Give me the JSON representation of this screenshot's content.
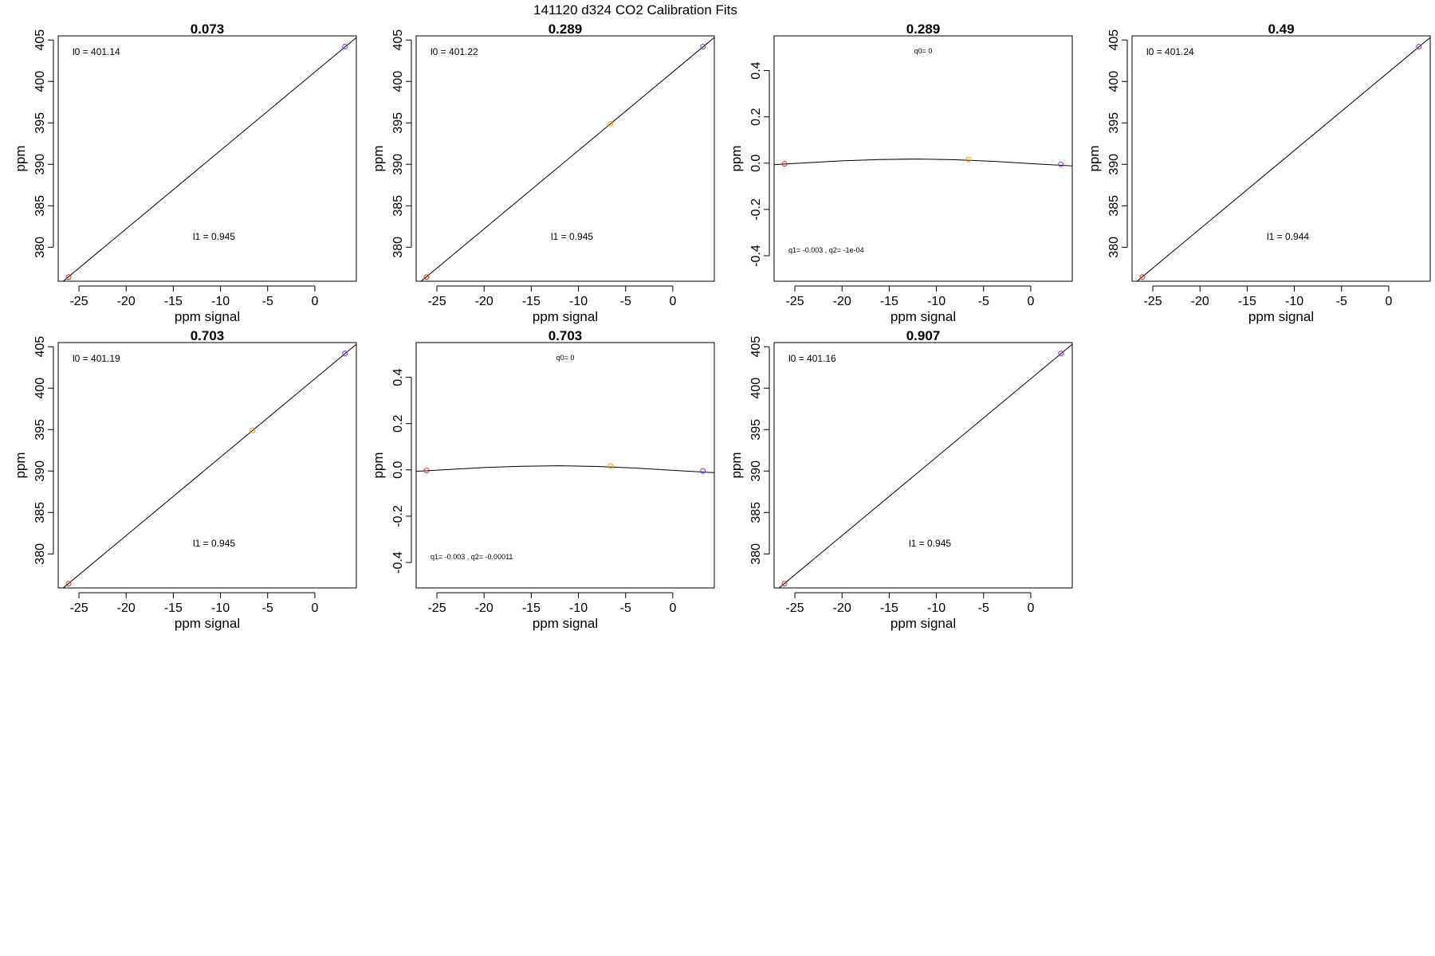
{
  "figure": {
    "title": "141120   d324   CO2 Calibration Fits"
  },
  "chart_data": [
    {
      "type": "scatter",
      "fit": "linear",
      "title": "0.073",
      "xlabel": "ppm signal",
      "ylabel": "ppm",
      "xlim": [
        -27.2,
        4.4
      ],
      "ylim": [
        375.9,
        405.5
      ],
      "xticks": [
        -25,
        -20,
        -15,
        -10,
        -5,
        0
      ],
      "yticks": [
        380,
        385,
        390,
        395,
        400,
        405
      ],
      "points": [
        {
          "x": -26.1,
          "y": 376.4,
          "color": "#d62728"
        },
        {
          "x": 3.2,
          "y": 404.2,
          "color": "#8a2be2"
        }
      ],
      "fit_line": [
        {
          "x": -27.2,
          "y": 375.4
        },
        {
          "x": 4.4,
          "y": 405.3
        }
      ],
      "annotations": [
        "l0 =  401.14",
        "l1 =  0.945"
      ],
      "grid": false,
      "legend": "none"
    },
    {
      "type": "scatter",
      "fit": "linear",
      "title": "0.289",
      "xlabel": "ppm signal",
      "ylabel": "ppm",
      "xlim": [
        -27.2,
        4.4
      ],
      "ylim": [
        375.9,
        405.5
      ],
      "xticks": [
        -25,
        -20,
        -15,
        -10,
        -5,
        0
      ],
      "yticks": [
        380,
        385,
        390,
        395,
        400,
        405
      ],
      "points": [
        {
          "x": -26.1,
          "y": 376.4,
          "color": "#d62728"
        },
        {
          "x": -6.6,
          "y": 394.9,
          "color": "#ff9900"
        },
        {
          "x": 3.2,
          "y": 404.2,
          "color": "#8a2be2"
        }
      ],
      "fit_line": [
        {
          "x": -27.2,
          "y": 375.4
        },
        {
          "x": 4.4,
          "y": 405.3
        }
      ],
      "annotations": [
        "l0 =  401.22",
        "l1 =  0.945"
      ],
      "grid": false,
      "legend": "none"
    },
    {
      "type": "scatter",
      "fit": "quadratic",
      "title": "0.289",
      "xlabel": "ppm signal",
      "ylabel": "ppm",
      "xlim": [
        -27.2,
        4.4
      ],
      "ylim": [
        -0.51,
        0.55
      ],
      "xticks": [
        -25,
        -20,
        -15,
        -10,
        -5,
        0
      ],
      "yticks": [
        -0.4,
        -0.2,
        0.0,
        0.2,
        0.4
      ],
      "ytick_labels": [
        "-0.4",
        "-0.2",
        "0.0",
        "0.2",
        "0.4"
      ],
      "points": [
        {
          "x": -26.1,
          "y": -0.003,
          "color": "#d62728"
        },
        {
          "x": -6.6,
          "y": 0.016,
          "color": "#ff9900"
        },
        {
          "x": 3.2,
          "y": -0.005,
          "color": "#8a2be2"
        }
      ],
      "fit_curve": {
        "x": [
          -27.2,
          -24,
          -20,
          -16,
          -12,
          -8,
          -4,
          0,
          4.4
        ],
        "y": [
          -0.006,
          0.001,
          0.01,
          0.016,
          0.018,
          0.015,
          0.008,
          -0.002,
          -0.012
        ]
      },
      "annotations": [
        "q0= 0",
        "q1= -0.003 , q2= -1e-04"
      ],
      "grid": false,
      "legend": "none"
    },
    {
      "type": "scatter",
      "fit": "linear",
      "title": "0.49",
      "xlabel": "ppm signal",
      "ylabel": "ppm",
      "xlim": [
        -27.2,
        4.4
      ],
      "ylim": [
        375.9,
        405.5
      ],
      "xticks": [
        -25,
        -20,
        -15,
        -10,
        -5,
        0
      ],
      "yticks": [
        380,
        385,
        390,
        395,
        400,
        405
      ],
      "points": [
        {
          "x": -26.1,
          "y": 376.4,
          "color": "#d62728"
        },
        {
          "x": 3.2,
          "y": 404.2,
          "color": "#8a2be2"
        }
      ],
      "fit_line": [
        {
          "x": -27.2,
          "y": 375.4
        },
        {
          "x": 4.4,
          "y": 405.3
        }
      ],
      "annotations": [
        "l0 =  401.24",
        "l1 =  0.944"
      ],
      "grid": false,
      "legend": "none"
    },
    {
      "type": "scatter",
      "fit": "linear",
      "title": "0.703",
      "xlabel": "ppm signal",
      "ylabel": "ppm",
      "xlim": [
        -27.2,
        4.4
      ],
      "ylim": [
        375.9,
        405.5
      ],
      "xticks": [
        -25,
        -20,
        -15,
        -10,
        -5,
        0
      ],
      "yticks": [
        380,
        385,
        390,
        395,
        400,
        405
      ],
      "points": [
        {
          "x": -26.1,
          "y": 376.4,
          "color": "#d62728"
        },
        {
          "x": -6.6,
          "y": 394.9,
          "color": "#ff9900"
        },
        {
          "x": 3.2,
          "y": 404.2,
          "color": "#8a2be2"
        }
      ],
      "fit_line": [
        {
          "x": -27.2,
          "y": 375.4
        },
        {
          "x": 4.4,
          "y": 405.3
        }
      ],
      "annotations": [
        "l0 =  401.19",
        "l1 =  0.945"
      ],
      "grid": false,
      "legend": "none"
    },
    {
      "type": "scatter",
      "fit": "quadratic",
      "title": "0.703",
      "xlabel": "ppm signal",
      "ylabel": "ppm",
      "xlim": [
        -27.2,
        4.4
      ],
      "ylim": [
        -0.51,
        0.55
      ],
      "xticks": [
        -25,
        -20,
        -15,
        -10,
        -5,
        0
      ],
      "yticks": [
        -0.4,
        -0.2,
        0.0,
        0.2,
        0.4
      ],
      "ytick_labels": [
        "-0.4",
        "-0.2",
        "0.0",
        "0.2",
        "0.4"
      ],
      "points": [
        {
          "x": -26.1,
          "y": -0.003,
          "color": "#d62728"
        },
        {
          "x": -6.6,
          "y": 0.016,
          "color": "#ff9900"
        },
        {
          "x": 3.2,
          "y": -0.005,
          "color": "#8a2be2"
        }
      ],
      "fit_curve": {
        "x": [
          -27.2,
          -24,
          -20,
          -16,
          -12,
          -8,
          -4,
          0,
          4.4
        ],
        "y": [
          -0.006,
          0.001,
          0.01,
          0.016,
          0.018,
          0.015,
          0.008,
          -0.002,
          -0.012
        ]
      },
      "annotations": [
        "q0= 0",
        "q1= -0.003 , q2= -0.00011"
      ],
      "grid": false,
      "legend": "none"
    },
    {
      "type": "scatter",
      "fit": "linear",
      "title": "0.907",
      "xlabel": "ppm signal",
      "ylabel": "ppm",
      "xlim": [
        -27.2,
        4.4
      ],
      "ylim": [
        375.9,
        405.5
      ],
      "xticks": [
        -25,
        -20,
        -15,
        -10,
        -5,
        0
      ],
      "yticks": [
        380,
        385,
        390,
        395,
        400,
        405
      ],
      "points": [
        {
          "x": -26.1,
          "y": 376.4,
          "color": "#d62728"
        },
        {
          "x": 3.2,
          "y": 404.2,
          "color": "#8a2be2"
        }
      ],
      "fit_line": [
        {
          "x": -27.2,
          "y": 375.4
        },
        {
          "x": 4.4,
          "y": 405.3
        }
      ],
      "annotations": [
        "l0 =  401.16",
        "l1 =  0.945"
      ],
      "grid": false,
      "legend": "none"
    }
  ]
}
